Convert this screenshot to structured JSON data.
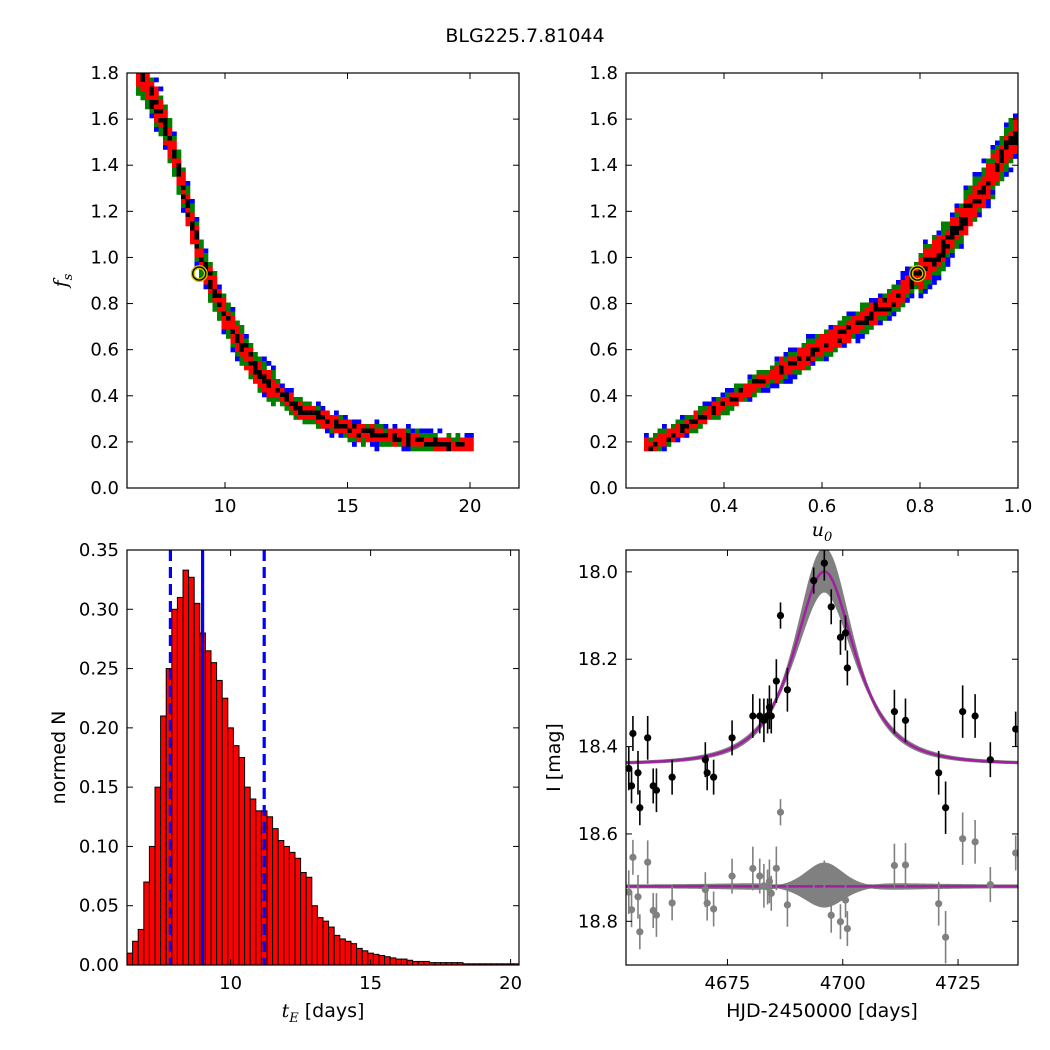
{
  "figure_title": "BLG225.7.81044",
  "chart_data": [
    {
      "id": "fs_vs_tE",
      "type": "heatmap",
      "xlim": [
        6,
        22
      ],
      "ylim": [
        0.0,
        1.8
      ],
      "xticks": [
        10,
        15,
        20
      ],
      "yticks": [
        0.0,
        0.2,
        0.4,
        0.6,
        0.8,
        1.0,
        1.2,
        1.4,
        1.6,
        1.8
      ],
      "xlabel": "",
      "ylabel": "f_s",
      "levels": [
        {
          "name": "outer",
          "color": "#0000ff"
        },
        {
          "name": "2-sigma",
          "color": "#008000"
        },
        {
          "name": "1-sigma",
          "color": "#ff0000"
        },
        {
          "name": "peak",
          "color": "#000000"
        }
      ],
      "ridge": [
        [
          6.5,
          1.8
        ],
        [
          7.5,
          1.6
        ],
        [
          8.3,
          1.3
        ],
        [
          9.0,
          1.0
        ],
        [
          10.0,
          0.75
        ],
        [
          11.3,
          0.5
        ],
        [
          13.0,
          0.34
        ],
        [
          15.5,
          0.24
        ],
        [
          19.5,
          0.18
        ]
      ],
      "best_fit": {
        "x": 8.95,
        "y": 0.93
      }
    },
    {
      "id": "fs_vs_u0",
      "type": "heatmap",
      "xlim": [
        0.2,
        1.0
      ],
      "ylim": [
        0.0,
        1.8
      ],
      "xticks": [
        0.4,
        0.6,
        0.8,
        1.0
      ],
      "yticks": [
        0.0,
        0.2,
        0.4,
        0.6,
        0.8,
        1.0,
        1.2,
        1.4,
        1.6,
        1.8
      ],
      "xlabel": "u_0",
      "ylabel": "",
      "levels": [
        {
          "name": "outer",
          "color": "#0000ff"
        },
        {
          "name": "2-sigma",
          "color": "#008000"
        },
        {
          "name": "1-sigma",
          "color": "#ff0000"
        },
        {
          "name": "peak",
          "color": "#000000"
        }
      ],
      "ridge": [
        [
          0.25,
          0.18
        ],
        [
          0.35,
          0.3
        ],
        [
          0.45,
          0.43
        ],
        [
          0.55,
          0.55
        ],
        [
          0.65,
          0.68
        ],
        [
          0.75,
          0.82
        ],
        [
          0.85,
          1.05
        ],
        [
          0.93,
          1.3
        ],
        [
          1.0,
          1.55
        ]
      ],
      "best_fit": {
        "x": 0.795,
        "y": 0.93
      }
    },
    {
      "id": "tE_histogram",
      "type": "bar",
      "xlim": [
        6.3,
        20.3
      ],
      "ylim": [
        0.0,
        0.35
      ],
      "xticks": [
        10,
        15,
        20
      ],
      "yticks": [
        0.0,
        0.05,
        0.1,
        0.15,
        0.2,
        0.25,
        0.3,
        0.35
      ],
      "xlabel": "t_E [days]",
      "ylabel": "normed N",
      "bin_start": 6.3,
      "bin_width": 0.2,
      "values": [
        0.01,
        0.02,
        0.03,
        0.07,
        0.1,
        0.15,
        0.21,
        0.25,
        0.3,
        0.31,
        0.333,
        0.327,
        0.305,
        0.28,
        0.265,
        0.255,
        0.24,
        0.225,
        0.2,
        0.185,
        0.175,
        0.15,
        0.14,
        0.13,
        0.13,
        0.125,
        0.115,
        0.105,
        0.1,
        0.095,
        0.09,
        0.078,
        0.074,
        0.05,
        0.04,
        0.037,
        0.032,
        0.025,
        0.022,
        0.02,
        0.018,
        0.014,
        0.012,
        0.01,
        0.009,
        0.008,
        0.007,
        0.006,
        0.005,
        0.005,
        0.004,
        0.003,
        0.003,
        0.003,
        0.002,
        0.002,
        0.002,
        0.002,
        0.002,
        0.002,
        0.001,
        0.001,
        0.001,
        0.001,
        0.001,
        0.001,
        0.001,
        0.001,
        0.001,
        0.001
      ],
      "bar_color": "#ff0000",
      "median": 9.0,
      "lower": 7.85,
      "upper": 11.2
    },
    {
      "id": "light_curve",
      "type": "scatter",
      "xlim": [
        4653,
        4738
      ],
      "ylim": [
        18.9,
        17.95
      ],
      "xticks": [
        4675,
        4700,
        4725
      ],
      "yticks": [
        18.0,
        18.2,
        18.4,
        18.6,
        18.8
      ],
      "xlabel": "HJD-2450000 [days]",
      "ylabel": "I [mag]",
      "model": {
        "t0": 4696,
        "tE": 9.0,
        "u0": 0.795,
        "fs": 0.93,
        "baseline": 18.44,
        "color": "#a020a0"
      },
      "residual_offset": 18.72,
      "points": [
        {
          "t": 4654.5,
          "mag": 18.37,
          "err": 0.04
        },
        {
          "t": 4653.6,
          "mag": 18.45,
          "err": 0.05
        },
        {
          "t": 4654.2,
          "mag": 18.49,
          "err": 0.04
        },
        {
          "t": 4655.6,
          "mag": 18.46,
          "err": 0.05
        },
        {
          "t": 4656.0,
          "mag": 18.54,
          "err": 0.04
        },
        {
          "t": 4657.7,
          "mag": 18.38,
          "err": 0.05
        },
        {
          "t": 4658.9,
          "mag": 18.49,
          "err": 0.04
        },
        {
          "t": 4659.6,
          "mag": 18.5,
          "err": 0.05
        },
        {
          "t": 4663.0,
          "mag": 18.47,
          "err": 0.04
        },
        {
          "t": 4670.2,
          "mag": 18.43,
          "err": 0.04
        },
        {
          "t": 4670.6,
          "mag": 18.46,
          "err": 0.04
        },
        {
          "t": 4672.0,
          "mag": 18.47,
          "err": 0.04
        },
        {
          "t": 4676.0,
          "mag": 18.38,
          "err": 0.04
        },
        {
          "t": 4680.5,
          "mag": 18.33,
          "err": 0.05
        },
        {
          "t": 4682.0,
          "mag": 18.33,
          "err": 0.04
        },
        {
          "t": 4682.9,
          "mag": 18.34,
          "err": 0.05
        },
        {
          "t": 4683.7,
          "mag": 18.33,
          "err": 0.04
        },
        {
          "t": 4684.1,
          "mag": 18.31,
          "err": 0.05
        },
        {
          "t": 4684.5,
          "mag": 18.33,
          "err": 0.04
        },
        {
          "t": 4685.6,
          "mag": 18.25,
          "err": 0.05
        },
        {
          "t": 4686.5,
          "mag": 18.1,
          "err": 0.03
        },
        {
          "t": 4688.0,
          "mag": 18.27,
          "err": 0.05
        },
        {
          "t": 4693.7,
          "mag": 18.02,
          "err": 0.03
        },
        {
          "t": 4696.0,
          "mag": 17.98,
          "err": 0.04
        },
        {
          "t": 4697.5,
          "mag": 18.08,
          "err": 0.04
        },
        {
          "t": 4699.5,
          "mag": 18.15,
          "err": 0.04
        },
        {
          "t": 4700.6,
          "mag": 18.14,
          "err": 0.04
        },
        {
          "t": 4701.0,
          "mag": 18.22,
          "err": 0.04
        },
        {
          "t": 4711.2,
          "mag": 18.32,
          "err": 0.05
        },
        {
          "t": 4713.6,
          "mag": 18.34,
          "err": 0.05
        },
        {
          "t": 4720.8,
          "mag": 18.46,
          "err": 0.05
        },
        {
          "t": 4722.3,
          "mag": 18.54,
          "err": 0.06
        },
        {
          "t": 4726.0,
          "mag": 18.32,
          "err": 0.06
        },
        {
          "t": 4728.7,
          "mag": 18.33,
          "err": 0.05
        },
        {
          "t": 4732.0,
          "mag": 18.43,
          "err": 0.04
        },
        {
          "t": 4737.5,
          "mag": 18.36,
          "err": 0.04
        }
      ]
    }
  ]
}
